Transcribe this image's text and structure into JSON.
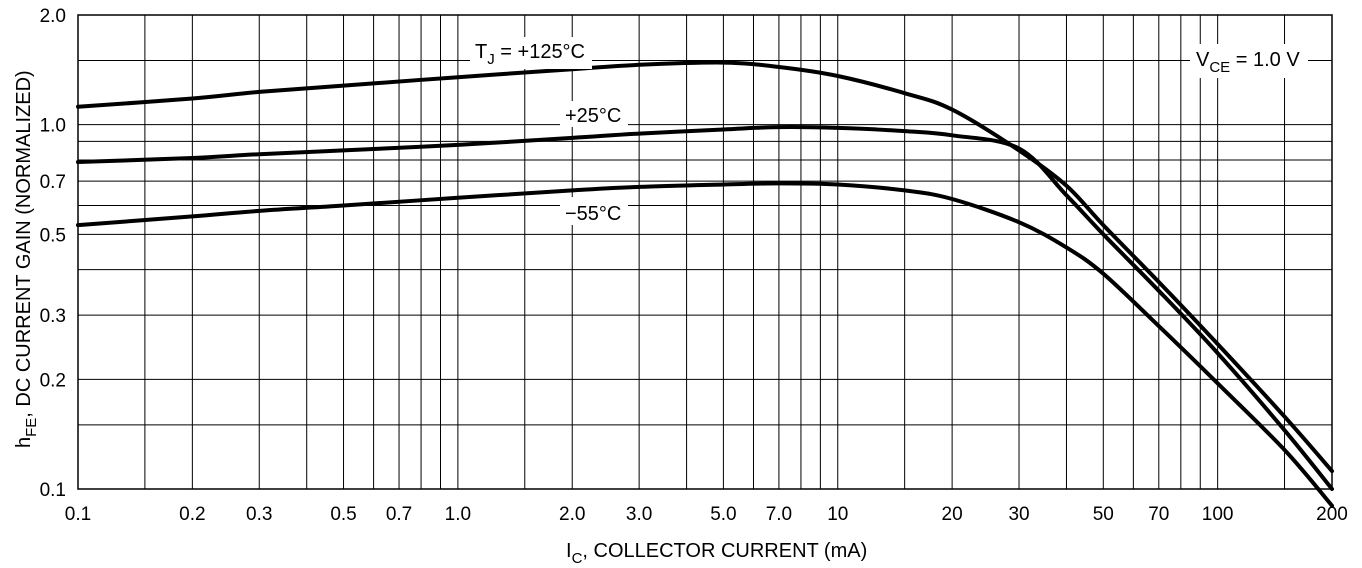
{
  "chart_data": {
    "type": "line",
    "title": "",
    "xlabel": {
      "main": "I",
      "sub": "C",
      "rest": ", COLLECTOR CURRENT (mA)"
    },
    "ylabel": {
      "main": "h",
      "sub": "FE",
      "rest": ", DC CURRENT GAIN (NORMALIZED)"
    },
    "x_scale": "log",
    "y_scale": "log",
    "xlim": [
      0.1,
      200
    ],
    "ylim": [
      0.1,
      2.0
    ],
    "grid": true,
    "x_ticks": [
      {
        "v": 0.1,
        "label": "0.1"
      },
      {
        "v": 0.2,
        "label": "0.2"
      },
      {
        "v": 0.3,
        "label": "0.3"
      },
      {
        "v": 0.5,
        "label": "0.5"
      },
      {
        "v": 0.7,
        "label": "0.7"
      },
      {
        "v": 1.0,
        "label": "1.0"
      },
      {
        "v": 2.0,
        "label": "2.0"
      },
      {
        "v": 3.0,
        "label": "3.0"
      },
      {
        "v": 5.0,
        "label": "5.0"
      },
      {
        "v": 7.0,
        "label": "7.0"
      },
      {
        "v": 10,
        "label": "10"
      },
      {
        "v": 20,
        "label": "20"
      },
      {
        "v": 30,
        "label": "30"
      },
      {
        "v": 50,
        "label": "50"
      },
      {
        "v": 70,
        "label": "70"
      },
      {
        "v": 100,
        "label": "100"
      },
      {
        "v": 200,
        "label": "200"
      }
    ],
    "x_grid": [
      0.1,
      0.15,
      0.2,
      0.3,
      0.4,
      0.5,
      0.6,
      0.7,
      0.8,
      0.9,
      1,
      1.5,
      2,
      3,
      4,
      5,
      6,
      7,
      8,
      9,
      10,
      15,
      20,
      30,
      40,
      50,
      60,
      70,
      80,
      90,
      100,
      150,
      200
    ],
    "y_ticks": [
      {
        "v": 0.1,
        "label": "0.1"
      },
      {
        "v": 0.2,
        "label": "0.2"
      },
      {
        "v": 0.3,
        "label": "0.3"
      },
      {
        "v": 0.5,
        "label": "0.5"
      },
      {
        "v": 0.7,
        "label": "0.7"
      },
      {
        "v": 1.0,
        "label": "1.0"
      },
      {
        "v": 2.0,
        "label": "2.0"
      }
    ],
    "y_grid": [
      0.1,
      0.15,
      0.2,
      0.3,
      0.4,
      0.5,
      0.6,
      0.7,
      0.8,
      0.9,
      1.0,
      1.5,
      2.0
    ],
    "series": [
      {
        "name": "+125°C",
        "x": [
          0.1,
          0.2,
          0.3,
          0.5,
          1.0,
          2.0,
          3.0,
          5.0,
          7.0,
          10,
          15,
          20,
          30,
          40,
          50,
          70,
          100,
          150,
          200
        ],
        "y": [
          1.12,
          1.18,
          1.23,
          1.28,
          1.35,
          1.42,
          1.46,
          1.48,
          1.44,
          1.36,
          1.22,
          1.1,
          0.85,
          0.68,
          0.53,
          0.37,
          0.25,
          0.158,
          0.112
        ]
      },
      {
        "name": "+25°C",
        "x": [
          0.1,
          0.2,
          0.3,
          0.5,
          1.0,
          2.0,
          3.0,
          5.0,
          7.0,
          10,
          15,
          20,
          30,
          40,
          50,
          70,
          100,
          150,
          200
        ],
        "y": [
          0.79,
          0.81,
          0.83,
          0.85,
          0.88,
          0.92,
          0.945,
          0.97,
          0.985,
          0.98,
          0.96,
          0.935,
          0.86,
          0.64,
          0.5,
          0.35,
          0.236,
          0.145,
          0.1
        ]
      },
      {
        "name": "−55°C",
        "x": [
          0.1,
          0.2,
          0.3,
          0.5,
          1.0,
          2.0,
          3.0,
          5.0,
          7.0,
          10,
          15,
          20,
          30,
          40,
          50,
          70,
          100,
          150,
          200
        ],
        "y": [
          0.53,
          0.56,
          0.58,
          0.6,
          0.63,
          0.66,
          0.675,
          0.685,
          0.69,
          0.685,
          0.66,
          0.625,
          0.54,
          0.46,
          0.39,
          0.28,
          0.195,
          0.128,
          0.09
        ]
      }
    ],
    "annotations": {
      "tj_main": "T",
      "tj_sub": "J",
      "tj_rest": " = +125°C",
      "label_25": "+25°C",
      "label_m55": "−55°C",
      "vce_main": "V",
      "vce_sub": "CE",
      "vce_rest": " = 1.0 V"
    }
  }
}
